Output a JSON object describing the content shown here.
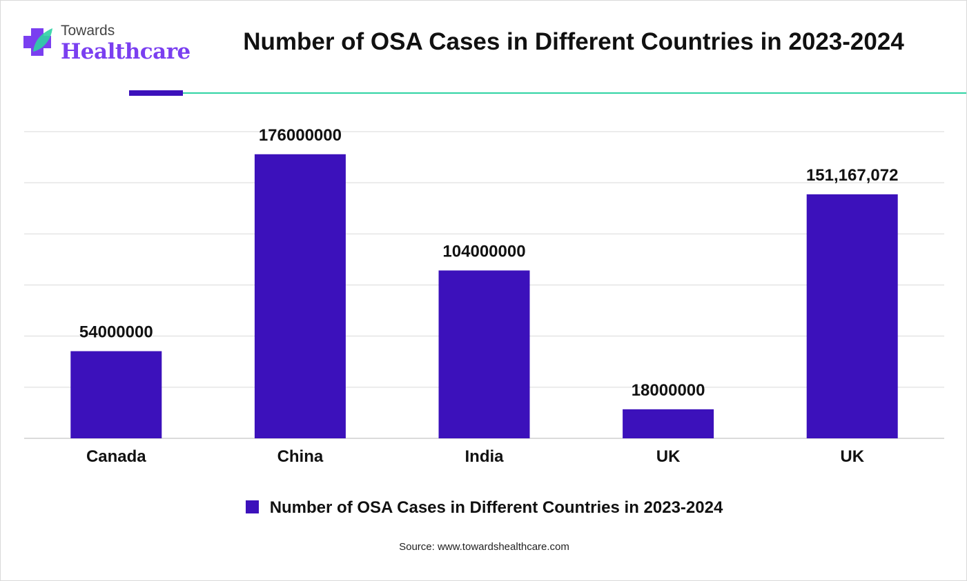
{
  "brand": {
    "logo_top_text": "Towards",
    "logo_main_text": "Healthcare",
    "colors": {
      "primary": "#3c11bb",
      "accent_line": "#2ed3a3",
      "logo_text": "#7a3ff0"
    }
  },
  "source_text": "Source: www.towardshealthcare.com",
  "chart_data": {
    "type": "bar",
    "title": "Number of OSA Cases in Different Countries in 2023-2024",
    "categories": [
      "Canada",
      "China",
      "India",
      "UK",
      "UK"
    ],
    "series": [
      {
        "name": "Number of OSA Cases in Different Countries in 2023-2024",
        "values": [
          54000000,
          176000000,
          104000000,
          18000000,
          151167072
        ],
        "data_labels": [
          "54000000",
          "176000000",
          "104000000",
          "18000000",
          "151,167,072"
        ],
        "color": "#3c11bb"
      }
    ],
    "xlabel": "",
    "ylabel": "",
    "ylim": [
      0,
      190000000
    ],
    "grid": true,
    "legend_position": "bottom",
    "y_tick_labels_shown": false
  }
}
